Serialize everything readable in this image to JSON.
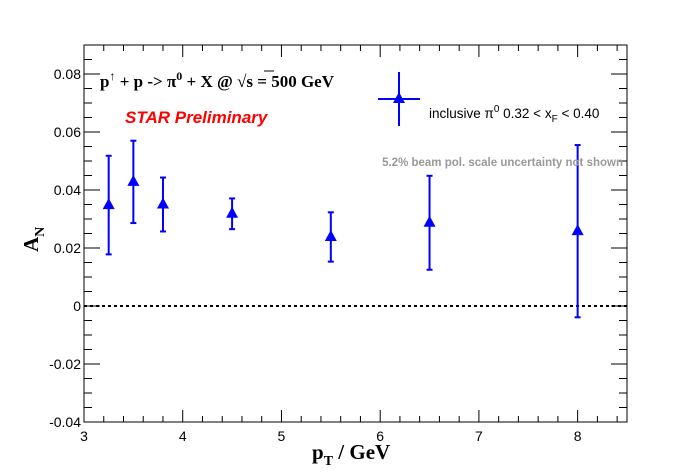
{
  "chart_data": {
    "type": "scatter",
    "title": "",
    "reaction": {
      "prefix": "p",
      "prefix_sup": "↑",
      "middle": " + p ->  π",
      "middle_sup": "0",
      "tail": " + X @  ",
      "sqrt": "√s",
      "energy": " = 500 GeV"
    },
    "preliminary": "STAR Preliminary",
    "note": "5.2% beam pol. scale uncertainty not shown",
    "xlabel": "p",
    "xlabel_sub": "T",
    "xlabel_tail": " / GeV",
    "ylabel": "A",
    "ylabel_sub": "N",
    "xlim": [
      3,
      8.5
    ],
    "ylim": [
      -0.04,
      0.09
    ],
    "x_ticks": [
      3,
      4,
      5,
      6,
      7,
      8
    ],
    "x_tick_labels": [
      "3",
      "4",
      "5",
      "6",
      "7",
      "8"
    ],
    "y_ticks": [
      -0.04,
      -0.02,
      0,
      0.02,
      0.04,
      0.06,
      0.08
    ],
    "y_tick_labels": [
      "-0.04",
      "-0.02",
      "0",
      "0.02",
      "0.04",
      "0.06",
      "0.08"
    ],
    "reference_line": 0,
    "legend_position": "top-right",
    "series": [
      {
        "name": "inclusive π0 0.32 < xF < 0.40",
        "legend": {
          "pre": "inclusive π",
          "sup": "0",
          "mid": " 0.32 < x",
          "sub": "F",
          "post": " < 0.40"
        },
        "color": "#0000ff",
        "marker": "triangle",
        "points": [
          {
            "x": 3.25,
            "y": 0.0348,
            "err": 0.017
          },
          {
            "x": 3.5,
            "y": 0.0428,
            "err": 0.0142
          },
          {
            "x": 3.8,
            "y": 0.035,
            "err": 0.0093
          },
          {
            "x": 4.5,
            "y": 0.0318,
            "err": 0.0053
          },
          {
            "x": 5.5,
            "y": 0.0238,
            "err": 0.0085
          },
          {
            "x": 6.5,
            "y": 0.0287,
            "err": 0.0162
          },
          {
            "x": 8.0,
            "y": 0.0258,
            "err": 0.0297
          }
        ]
      }
    ]
  }
}
